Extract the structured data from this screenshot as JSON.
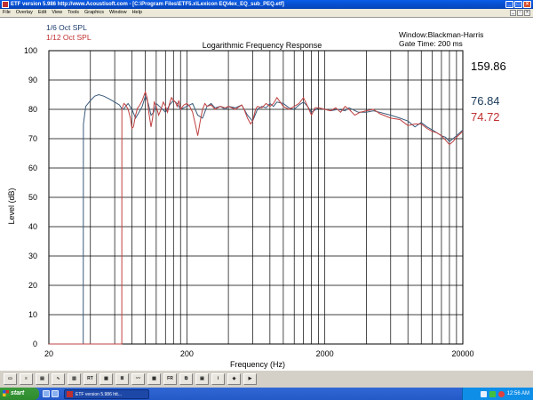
{
  "window": {
    "title": "ETF version 5.986 http://www.Acoustisoft.com - [C:\\Program Files\\ETF5.x\\Lexicon EQ\\4ex_EQ_sub_PEQ.etf]"
  },
  "menu": [
    "File",
    "Overlay",
    "Edit",
    "View",
    "Tools",
    "Graphics",
    "Window",
    "Help"
  ],
  "chart_data": {
    "type": "line",
    "title": "Logarithmic Frequency Response",
    "xlabel": "Frequency (Hz)",
    "ylabel": "Level (dB)",
    "xscale": "log",
    "xlim": [
      20,
      20000
    ],
    "ylim": [
      0,
      100
    ],
    "x_ticks": [
      20,
      200,
      2000,
      20000
    ],
    "x_tick_labels": [
      "20",
      "200",
      "2000",
      "20000"
    ],
    "y_ticks": [
      0,
      10,
      20,
      30,
      40,
      50,
      60,
      70,
      80,
      90,
      100
    ],
    "grid": true,
    "legend_position": "top-left",
    "info": [
      "Window:Blackman-Harris",
      "Gate Time: 200 ms"
    ],
    "readouts": [
      {
        "value": "159.86",
        "color": "#000000"
      },
      {
        "value": "76.84",
        "color": "#1a3a5a"
      },
      {
        "value": "74.72",
        "color": "#c03030"
      }
    ],
    "series": [
      {
        "name": "1/6 Oct SPL",
        "color": "#3a5a7a",
        "x": [
          20,
          35.5,
          35.6,
          37,
          40,
          43,
          46,
          50,
          55,
          60,
          65,
          68,
          70,
          72,
          75,
          80,
          85,
          90,
          95,
          100,
          105,
          110,
          115,
          120,
          130,
          140,
          150,
          160,
          170,
          180,
          200,
          220,
          240,
          260,
          280,
          300,
          320,
          350,
          380,
          400,
          450,
          500,
          550,
          600,
          650,
          700,
          750,
          800,
          850,
          900,
          1000,
          1100,
          1200,
          1300,
          1400,
          1500,
          1600,
          1800,
          2000,
          2200,
          2500,
          2800,
          3000,
          3500,
          4000,
          4500,
          5000,
          6000,
          7000,
          8000,
          9000,
          10000,
          11000,
          12000,
          13000,
          14000,
          15000,
          16000,
          17000,
          18000,
          20000
        ],
        "y": [
          0,
          0,
          75,
          81,
          83,
          84.5,
          85,
          84.5,
          83.5,
          82.5,
          81.5,
          80,
          80.2,
          81,
          82,
          80,
          77,
          79,
          81,
          84.5,
          82,
          78,
          79,
          82,
          80.5,
          79,
          81.5,
          83,
          82,
          80,
          81,
          82,
          78,
          77,
          81,
          82,
          80.5,
          81,
          80,
          81,
          80.5,
          81.5,
          78,
          76,
          80,
          81,
          80.5,
          82,
          81,
          82.5,
          82,
          80.5,
          80,
          81.5,
          82.5,
          81,
          79,
          80.5,
          80,
          79.5,
          80,
          79.5,
          80.5,
          79,
          79,
          79.5,
          79,
          78,
          77,
          76,
          74,
          75.5,
          74,
          73,
          72,
          71,
          70.5,
          69,
          70,
          71,
          73
        ]
      },
      {
        "name": "1/12 Oct SPL",
        "color": "#c04040",
        "x": [
          20,
          67.5,
          67.6,
          70,
          72,
          75,
          78,
          80,
          82,
          85,
          88,
          90,
          95,
          100,
          103,
          106,
          110,
          113,
          116,
          120,
          125,
          130,
          135,
          140,
          145,
          150,
          155,
          160,
          165,
          170,
          175,
          180,
          190,
          200,
          210,
          220,
          230,
          240,
          250,
          260,
          270,
          280,
          300,
          320,
          350,
          380,
          400,
          450,
          500,
          520,
          550,
          580,
          600,
          630,
          650,
          700,
          750,
          800,
          850,
          900,
          950,
          1000,
          1100,
          1200,
          1300,
          1400,
          1500,
          1600,
          1700,
          1800,
          2000,
          2200,
          2400,
          2600,
          2800,
          3000,
          3300,
          3600,
          4000,
          4500,
          5000,
          6000,
          7000,
          8000,
          9000,
          10000,
          11000,
          12000,
          13000,
          14000,
          15000,
          16000,
          17000,
          18000,
          20000
        ],
        "y": [
          0,
          0,
          80,
          82,
          81.5,
          80,
          77,
          73.5,
          74,
          78,
          80.5,
          81,
          83,
          86,
          84,
          79,
          74,
          77,
          82.5,
          81,
          78,
          80,
          82.5,
          81,
          79,
          82,
          84,
          83,
          82.5,
          81,
          83,
          80,
          81.5,
          82,
          81,
          79,
          75,
          71,
          76,
          80,
          82,
          81,
          81.5,
          80,
          81,
          80.5,
          81,
          80,
          81.5,
          80,
          77,
          75,
          76,
          80,
          81,
          80.5,
          82,
          81,
          82,
          84,
          82.5,
          81,
          80,
          81,
          82,
          84,
          81,
          78,
          80.5,
          80.5,
          80,
          79.5,
          80.5,
          79,
          81,
          80,
          78,
          79,
          79.5,
          80,
          78.5,
          77,
          76.5,
          74.5,
          75,
          75,
          73.5,
          72.5,
          72,
          71,
          69.5,
          68,
          69,
          70.5,
          72.5
        ]
      }
    ]
  },
  "toolbar": {
    "buttons": [
      "open",
      "save",
      "print",
      "graph",
      "bars",
      "RT",
      "spec",
      "lines",
      "wave",
      "waterfall",
      "FR",
      "copy",
      "lock",
      "info",
      "pick",
      "play"
    ]
  },
  "taskbar": {
    "start_label": "start",
    "task_label": "ETF version 5.986 htt...",
    "clock": "12:56 AM"
  }
}
